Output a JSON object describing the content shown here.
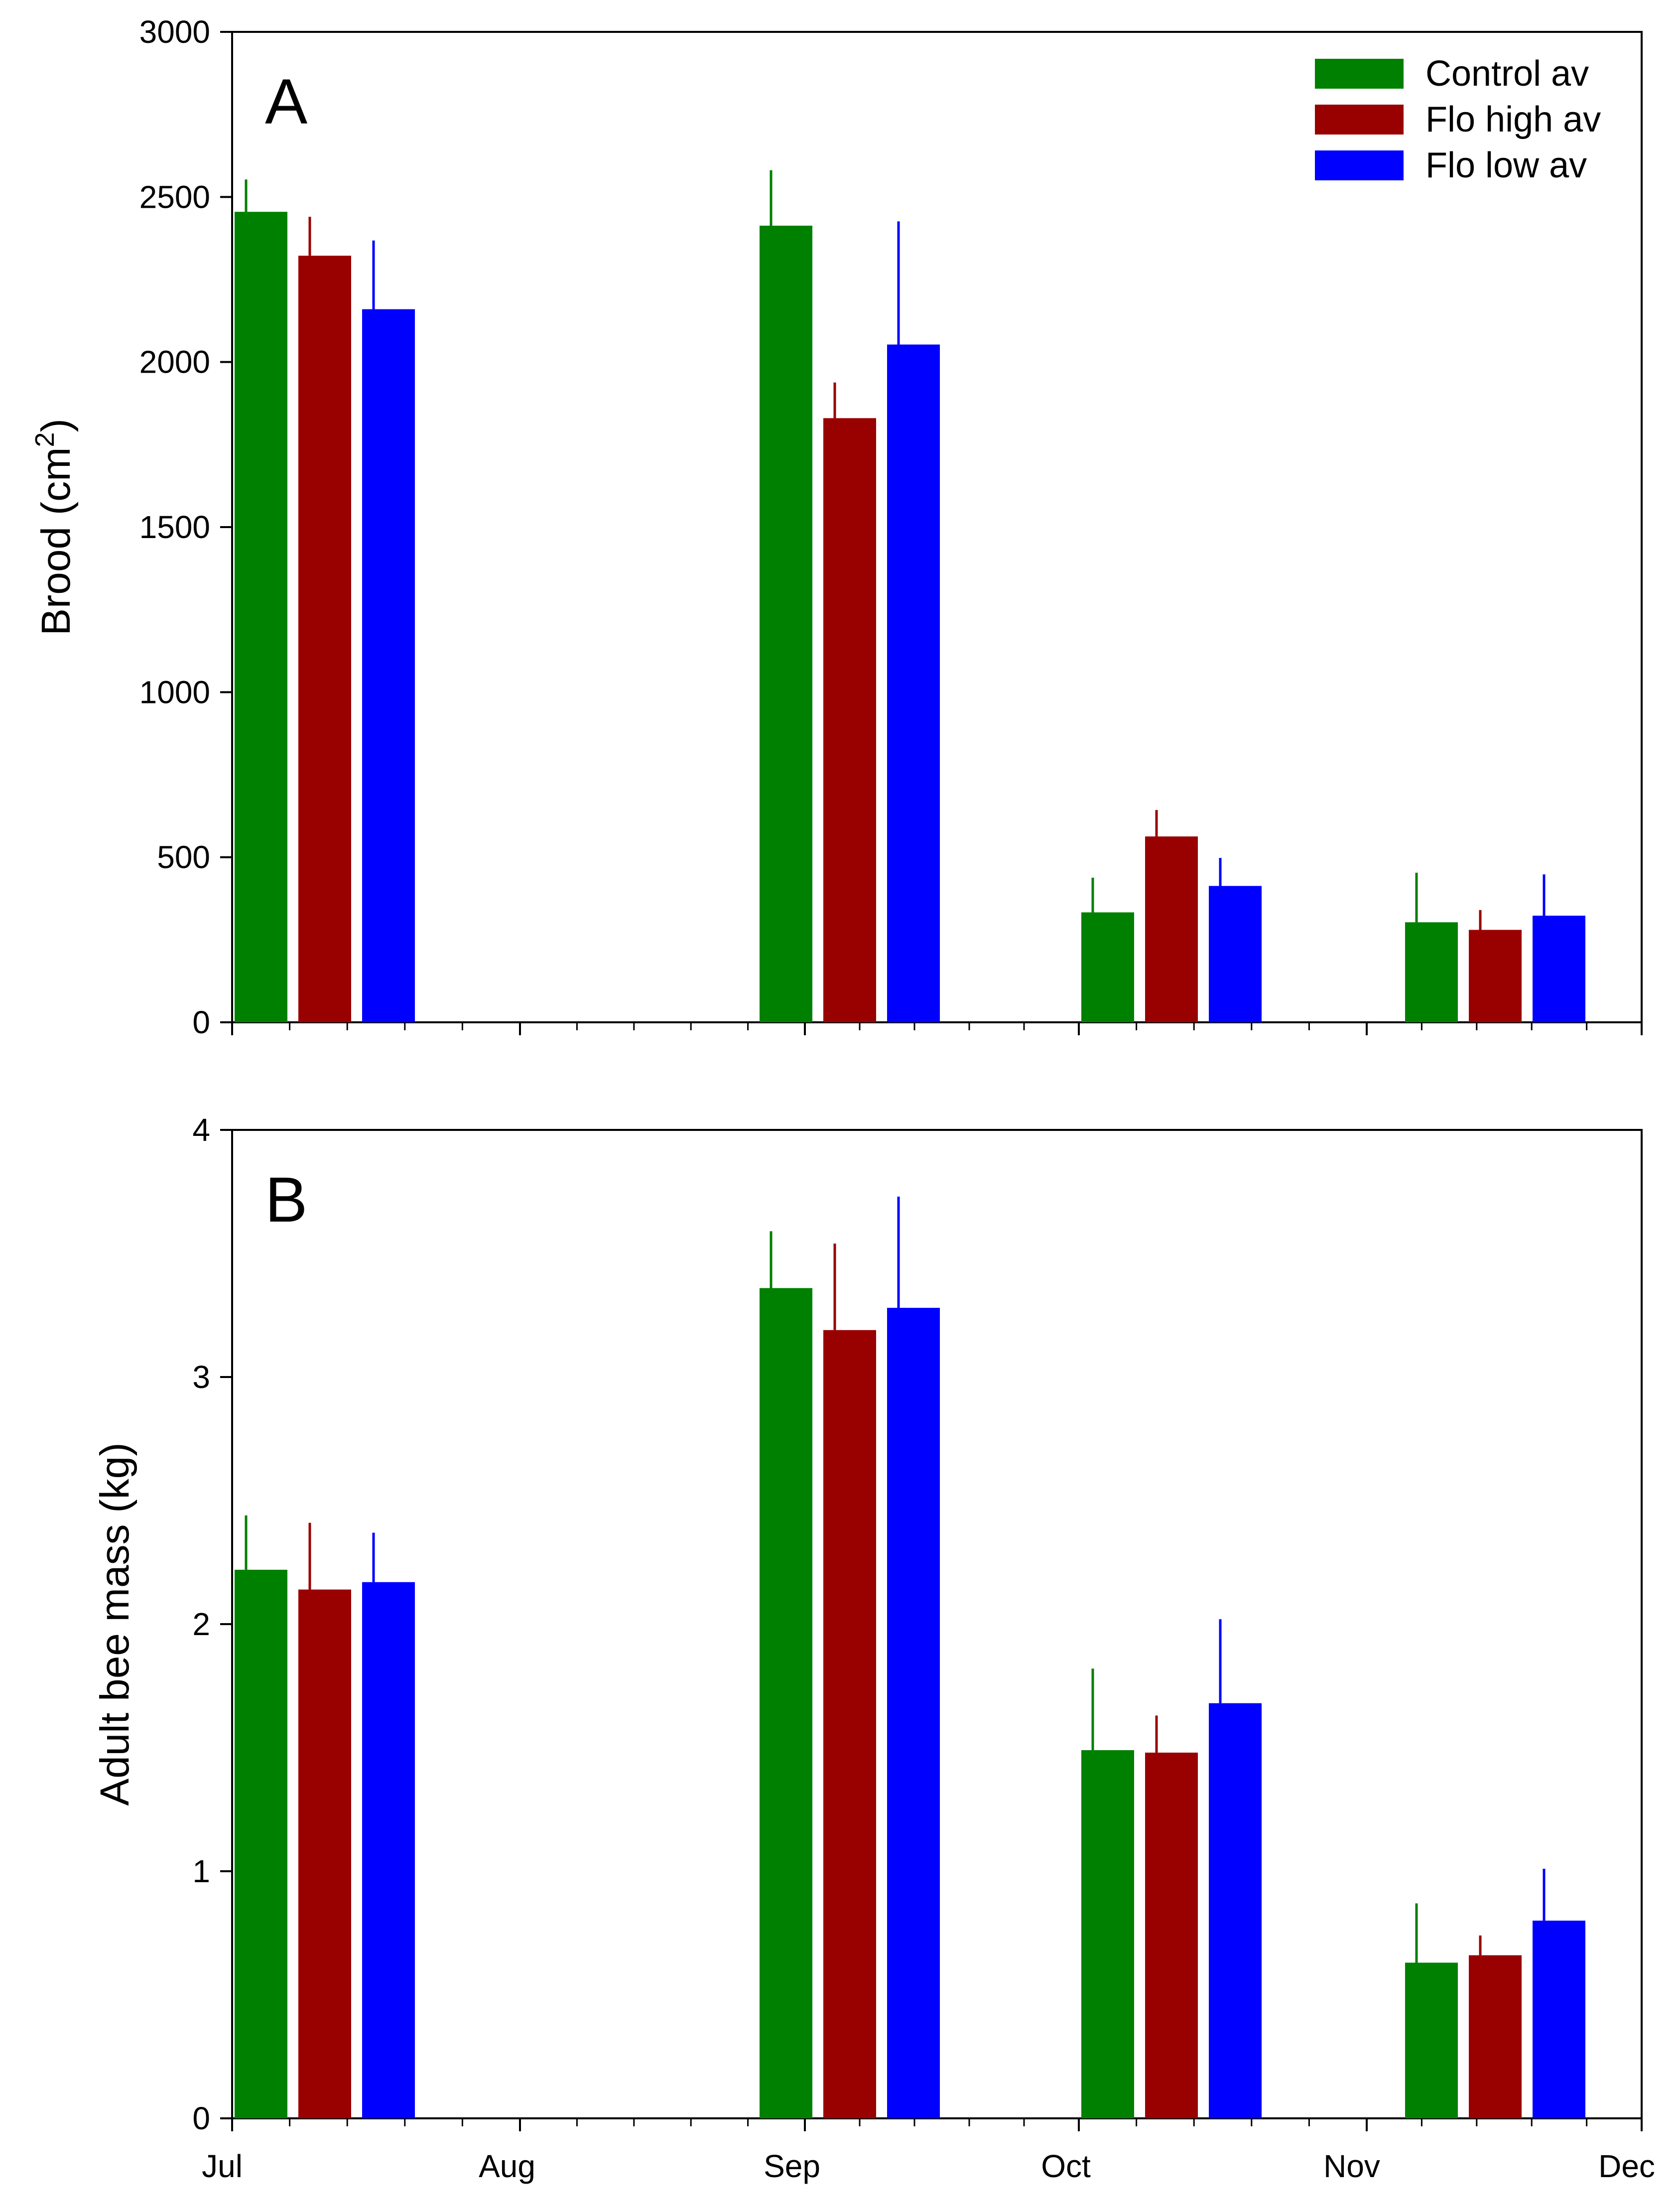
{
  "chart_data": [
    {
      "type": "bar",
      "panel_label": "A",
      "ylabel_main": "Brood (cm",
      "ylabel_sup": "2",
      "ylabel_end": ")",
      "ylim": [
        0,
        3000
      ],
      "yticks": [
        "0",
        "500",
        "1000",
        "1500",
        "2000",
        "2500",
        "3000"
      ],
      "groups": [
        "Jul",
        "Sep",
        "Oct",
        "Nov"
      ],
      "series": [
        {
          "name": "Control av",
          "color": "#008000",
          "values": [
            2455,
            2413,
            333,
            303
          ],
          "errors": [
            98,
            168,
            105,
            150
          ]
        },
        {
          "name": "Flo high av",
          "color": "#990000",
          "values": [
            2322,
            1830,
            563,
            280
          ],
          "errors": [
            118,
            108,
            80,
            60
          ]
        },
        {
          "name": "Flo low av",
          "color": "#0000ff",
          "values": [
            2160,
            2053,
            413,
            323
          ],
          "errors": [
            208,
            373,
            85,
            125
          ]
        }
      ]
    },
    {
      "type": "bar",
      "panel_label": "B",
      "ylabel": "Adult bee mass (kg)",
      "ylim": [
        0,
        4
      ],
      "yticks": [
        "0",
        "1",
        "2",
        "3",
        "4"
      ],
      "groups": [
        "Jul",
        "Sep",
        "Oct",
        "Nov"
      ],
      "series": [
        {
          "name": "Control av",
          "color": "#008000",
          "values": [
            2.22,
            3.36,
            1.49,
            0.63
          ],
          "errors": [
            0.22,
            0.23,
            0.33,
            0.24
          ]
        },
        {
          "name": "Flo high av",
          "color": "#990000",
          "values": [
            2.14,
            3.19,
            1.48,
            0.66
          ],
          "errors": [
            0.27,
            0.35,
            0.15,
            0.08
          ]
        },
        {
          "name": "Flo low av",
          "color": "#0000ff",
          "values": [
            2.17,
            3.28,
            1.68,
            0.8
          ],
          "errors": [
            0.2,
            0.45,
            0.34,
            0.21
          ]
        }
      ]
    }
  ],
  "x_axis": {
    "month_labels": [
      "Jul",
      "Aug",
      "Sep",
      "Oct",
      "Nov",
      "Dec"
    ]
  },
  "legend": {
    "position": "top-right",
    "entries": [
      "Control av",
      "Flo high av",
      "Flo low av"
    ]
  }
}
